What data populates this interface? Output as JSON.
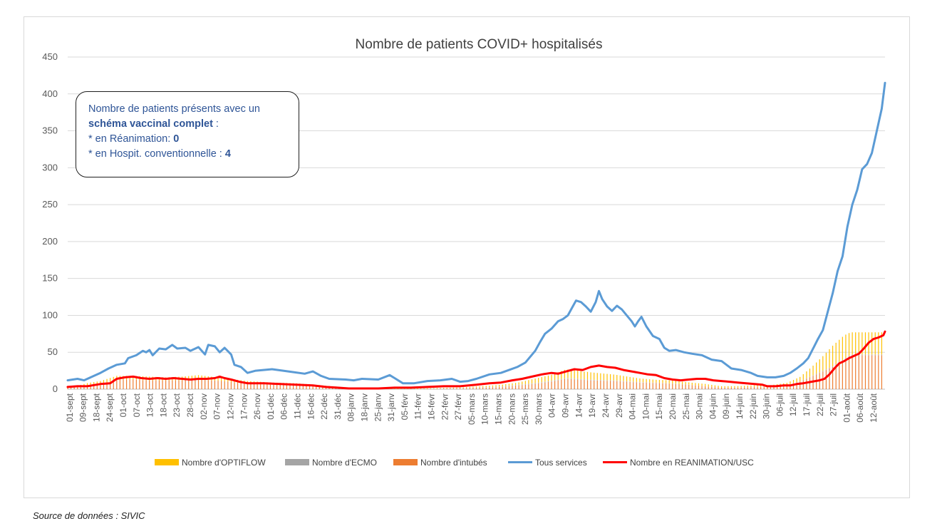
{
  "chart_data": {
    "type": "line",
    "title": "Nombre de patients COVID+ hospitalisés",
    "ylim": [
      0,
      450
    ],
    "yticks": [
      "0",
      "50",
      "100",
      "150",
      "200",
      "250",
      "300",
      "350",
      "400",
      "450"
    ],
    "grid": true,
    "legend_position": "bottom",
    "x_tick_labels": [
      "01-sept",
      "09-sept",
      "18-sept",
      "24-sept",
      "01-oct",
      "07-oct",
      "13-oct",
      "18-oct",
      "23-oct",
      "28-oct",
      "02-nov",
      "07-nov",
      "12-nov",
      "17-nov",
      "26-nov",
      "01-déc",
      "06-déc",
      "11-déc",
      "16-déc",
      "22-déc",
      "31-déc",
      "08-janv",
      "18-janv",
      "25-janv",
      "31-janv",
      "05-févr",
      "11-févr",
      "16-févr",
      "22-févr",
      "27-févr",
      "05-mars",
      "10-mars",
      "15-mars",
      "20-mars",
      "25-mars",
      "30-mars",
      "04-avr",
      "09-avr",
      "14-avr",
      "19-avr",
      "24-avr",
      "29-avr",
      "04-mai",
      "10-mai",
      "15-mai",
      "20-mai",
      "25-mai",
      "30-mai",
      "04-juin",
      "09-juin",
      "14-juin",
      "22-juin",
      "30-juin",
      "06-juil",
      "12-juil",
      "17-juil",
      "22-juil",
      "27-juil",
      "01-août",
      "06-août",
      "12-août"
    ],
    "series": [
      {
        "name": "Nombre d'OPTIFLOW",
        "kind": "bar",
        "color": "#ffc000",
        "values": [
          [
            0,
            0
          ],
          [
            6,
            1
          ],
          [
            12,
            4
          ],
          [
            20,
            6
          ],
          [
            30,
            5
          ],
          [
            40,
            5
          ],
          [
            50,
            5
          ],
          [
            60,
            4
          ],
          [
            70,
            5
          ],
          [
            80,
            6
          ],
          [
            95,
            4
          ],
          [
            110,
            4
          ],
          [
            125,
            3
          ],
          [
            140,
            3
          ],
          [
            160,
            2
          ],
          [
            180,
            1
          ],
          [
            200,
            1
          ],
          [
            220,
            1
          ],
          [
            240,
            1
          ],
          [
            260,
            2
          ],
          [
            275,
            3
          ],
          [
            285,
            6
          ],
          [
            295,
            8
          ],
          [
            305,
            12
          ],
          [
            320,
            10
          ],
          [
            335,
            8
          ],
          [
            350,
            5
          ],
          [
            360,
            4
          ],
          [
            370,
            4
          ],
          [
            380,
            3
          ],
          [
            390,
            3
          ],
          [
            400,
            2
          ],
          [
            410,
            2
          ],
          [
            420,
            2
          ],
          [
            430,
            2
          ],
          [
            440,
            3
          ],
          [
            448,
            6
          ],
          [
            455,
            12
          ],
          [
            462,
            20
          ],
          [
            468,
            28
          ],
          [
            475,
            32
          ],
          [
            479,
            30
          ]
        ]
      },
      {
        "name": "Nombre d'ECMO",
        "kind": "bar",
        "color": "#a5a5a5",
        "values": [
          [
            0,
            0
          ],
          [
            200,
            0
          ],
          [
            300,
            1
          ],
          [
            400,
            0
          ],
          [
            479,
            1
          ]
        ]
      },
      {
        "name": "Nombre d'intubés",
        "kind": "bar",
        "color": "#ed7d31",
        "values": [
          [
            0,
            3
          ],
          [
            20,
            5
          ],
          [
            30,
            13
          ],
          [
            40,
            13
          ],
          [
            50,
            12
          ],
          [
            60,
            12
          ],
          [
            70,
            12
          ],
          [
            80,
            13
          ],
          [
            95,
            11
          ],
          [
            110,
            7
          ],
          [
            125,
            6
          ],
          [
            140,
            5
          ],
          [
            155,
            3
          ],
          [
            170,
            1
          ],
          [
            180,
            0
          ],
          [
            200,
            0
          ],
          [
            220,
            0
          ],
          [
            240,
            1
          ],
          [
            255,
            2
          ],
          [
            265,
            3
          ],
          [
            275,
            5
          ],
          [
            285,
            7
          ],
          [
            295,
            10
          ],
          [
            305,
            14
          ],
          [
            320,
            12
          ],
          [
            335,
            11
          ],
          [
            350,
            9
          ],
          [
            365,
            8
          ],
          [
            380,
            6
          ],
          [
            390,
            4
          ],
          [
            400,
            2
          ],
          [
            410,
            2
          ],
          [
            420,
            3
          ],
          [
            430,
            3
          ],
          [
            440,
            5
          ],
          [
            448,
            10
          ],
          [
            455,
            17
          ],
          [
            462,
            24
          ],
          [
            468,
            30
          ],
          [
            475,
            40
          ],
          [
            479,
            46
          ]
        ]
      },
      {
        "name": "Tous services",
        "kind": "line",
        "color": "#5b9bd5",
        "values": [
          [
            0,
            12
          ],
          [
            6,
            14
          ],
          [
            10,
            12
          ],
          [
            16,
            18
          ],
          [
            20,
            22
          ],
          [
            25,
            28
          ],
          [
            30,
            33
          ],
          [
            35,
            35
          ],
          [
            37,
            42
          ],
          [
            42,
            46
          ],
          [
            46,
            52
          ],
          [
            48,
            50
          ],
          [
            50,
            53
          ],
          [
            52,
            46
          ],
          [
            56,
            55
          ],
          [
            60,
            54
          ],
          [
            64,
            60
          ],
          [
            67,
            55
          ],
          [
            72,
            56
          ],
          [
            75,
            52
          ],
          [
            80,
            57
          ],
          [
            84,
            47
          ],
          [
            86,
            60
          ],
          [
            90,
            58
          ],
          [
            93,
            50
          ],
          [
            96,
            56
          ],
          [
            100,
            47
          ],
          [
            102,
            33
          ],
          [
            106,
            30
          ],
          [
            110,
            22
          ],
          [
            115,
            25
          ],
          [
            125,
            27
          ],
          [
            135,
            24
          ],
          [
            145,
            21
          ],
          [
            150,
            24
          ],
          [
            155,
            18
          ],
          [
            160,
            14
          ],
          [
            170,
            13
          ],
          [
            175,
            12
          ],
          [
            180,
            14
          ],
          [
            190,
            13
          ],
          [
            197,
            19
          ],
          [
            200,
            15
          ],
          [
            205,
            8
          ],
          [
            212,
            8
          ],
          [
            220,
            11
          ],
          [
            228,
            12
          ],
          [
            235,
            14
          ],
          [
            240,
            10
          ],
          [
            245,
            11
          ],
          [
            250,
            14
          ],
          [
            258,
            20
          ],
          [
            265,
            22
          ],
          [
            270,
            26
          ],
          [
            275,
            30
          ],
          [
            280,
            36
          ],
          [
            283,
            44
          ],
          [
            286,
            52
          ],
          [
            289,
            64
          ],
          [
            292,
            75
          ],
          [
            296,
            82
          ],
          [
            300,
            92
          ],
          [
            303,
            95
          ],
          [
            306,
            100
          ],
          [
            309,
            112
          ],
          [
            311,
            120
          ],
          [
            314,
            118
          ],
          [
            317,
            112
          ],
          [
            320,
            105
          ],
          [
            323,
            118
          ],
          [
            325,
            133
          ],
          [
            327,
            122
          ],
          [
            330,
            112
          ],
          [
            333,
            106
          ],
          [
            336,
            113
          ],
          [
            339,
            108
          ],
          [
            342,
            100
          ],
          [
            345,
            92
          ],
          [
            347,
            85
          ],
          [
            349,
            92
          ],
          [
            351,
            98
          ],
          [
            354,
            85
          ],
          [
            358,
            72
          ],
          [
            362,
            68
          ],
          [
            365,
            56
          ],
          [
            368,
            52
          ],
          [
            372,
            53
          ],
          [
            377,
            50
          ],
          [
            382,
            48
          ],
          [
            388,
            46
          ],
          [
            394,
            40
          ],
          [
            400,
            38
          ],
          [
            406,
            28
          ],
          [
            412,
            26
          ],
          [
            418,
            22
          ],
          [
            422,
            18
          ],
          [
            428,
            16
          ],
          [
            433,
            16
          ],
          [
            438,
            18
          ],
          [
            442,
            22
          ],
          [
            446,
            28
          ],
          [
            450,
            35
          ],
          [
            453,
            42
          ],
          [
            456,
            55
          ],
          [
            459,
            68
          ],
          [
            462,
            80
          ],
          [
            465,
            105
          ],
          [
            468,
            130
          ],
          [
            471,
            160
          ],
          [
            474,
            180
          ],
          [
            477,
            220
          ],
          [
            480,
            250
          ],
          [
            483,
            270
          ],
          [
            486,
            298
          ],
          [
            489,
            305
          ],
          [
            492,
            320
          ],
          [
            495,
            350
          ],
          [
            498,
            380
          ],
          [
            500,
            415
          ]
        ]
      },
      {
        "name": "Nombre en REANIMATION/USC",
        "kind": "line",
        "color": "#ff0000",
        "values": [
          [
            0,
            3
          ],
          [
            6,
            4
          ],
          [
            12,
            4
          ],
          [
            20,
            7
          ],
          [
            26,
            8
          ],
          [
            30,
            14
          ],
          [
            35,
            16
          ],
          [
            40,
            17
          ],
          [
            45,
            15
          ],
          [
            50,
            14
          ],
          [
            55,
            15
          ],
          [
            60,
            14
          ],
          [
            65,
            15
          ],
          [
            70,
            14
          ],
          [
            75,
            13
          ],
          [
            80,
            14
          ],
          [
            85,
            14
          ],
          [
            90,
            15
          ],
          [
            93,
            17
          ],
          [
            96,
            15
          ],
          [
            100,
            13
          ],
          [
            105,
            10
          ],
          [
            110,
            8
          ],
          [
            120,
            8
          ],
          [
            130,
            7
          ],
          [
            140,
            6
          ],
          [
            150,
            5
          ],
          [
            158,
            3
          ],
          [
            165,
            2
          ],
          [
            172,
            1
          ],
          [
            180,
            1
          ],
          [
            190,
            1
          ],
          [
            200,
            2
          ],
          [
            210,
            2
          ],
          [
            220,
            3
          ],
          [
            230,
            4
          ],
          [
            240,
            4
          ],
          [
            250,
            6
          ],
          [
            258,
            8
          ],
          [
            265,
            9
          ],
          [
            272,
            12
          ],
          [
            278,
            14
          ],
          [
            284,
            17
          ],
          [
            290,
            20
          ],
          [
            296,
            22
          ],
          [
            300,
            21
          ],
          [
            305,
            24
          ],
          [
            310,
            27
          ],
          [
            315,
            26
          ],
          [
            320,
            30
          ],
          [
            325,
            32
          ],
          [
            330,
            30
          ],
          [
            335,
            29
          ],
          [
            340,
            26
          ],
          [
            345,
            24
          ],
          [
            350,
            22
          ],
          [
            355,
            20
          ],
          [
            360,
            19
          ],
          [
            365,
            15
          ],
          [
            370,
            13
          ],
          [
            375,
            12
          ],
          [
            380,
            13
          ],
          [
            385,
            14
          ],
          [
            390,
            14
          ],
          [
            395,
            12
          ],
          [
            400,
            11
          ],
          [
            405,
            10
          ],
          [
            410,
            9
          ],
          [
            415,
            8
          ],
          [
            420,
            7
          ],
          [
            425,
            6
          ],
          [
            428,
            4
          ],
          [
            433,
            4
          ],
          [
            438,
            5
          ],
          [
            442,
            5
          ],
          [
            446,
            7
          ],
          [
            450,
            8
          ],
          [
            455,
            10
          ],
          [
            460,
            12
          ],
          [
            463,
            14
          ],
          [
            466,
            20
          ],
          [
            469,
            28
          ],
          [
            472,
            35
          ],
          [
            475,
            38
          ],
          [
            478,
            42
          ],
          [
            481,
            45
          ],
          [
            484,
            48
          ],
          [
            487,
            55
          ],
          [
            490,
            63
          ],
          [
            493,
            68
          ],
          [
            496,
            70
          ],
          [
            499,
            73
          ],
          [
            500,
            78
          ]
        ]
      }
    ],
    "annotation": {
      "line1": "Nombre de patients présents avec un",
      "line2_bold": "schéma vaccinal complet",
      "line2_rest": " :",
      "line3_prefix": "* en Réanimation: ",
      "line3_value": "0",
      "line4_prefix": "* en Hospit. conventionnelle : ",
      "line4_value": "4"
    }
  },
  "source_note": "Source de données : SIVIC"
}
